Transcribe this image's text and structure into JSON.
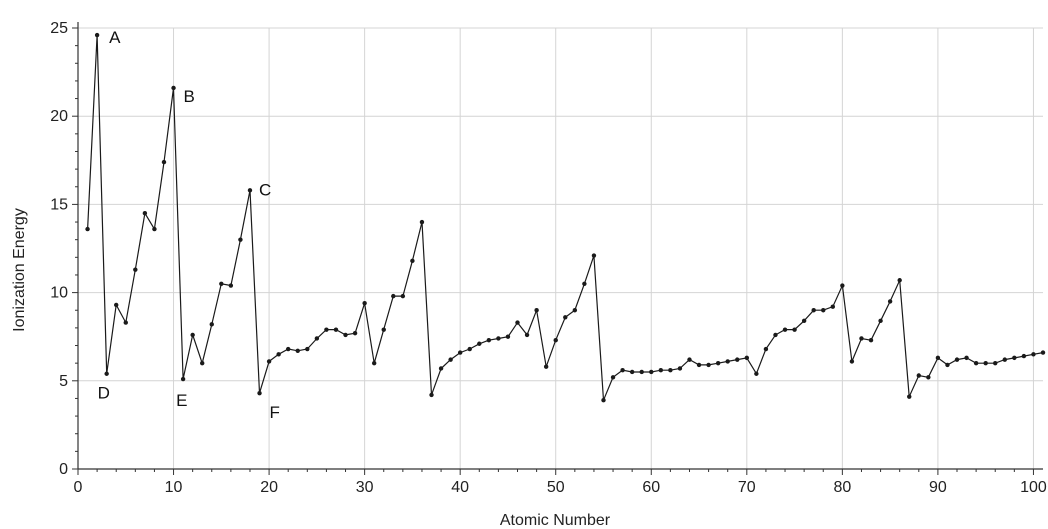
{
  "chart_data": {
    "type": "line",
    "title": "",
    "xlabel": "Atomic Number",
    "ylabel": "Ionization Energy",
    "xlim": [
      0,
      101
    ],
    "ylim": [
      0,
      25
    ],
    "xticks": [
      0,
      10,
      20,
      30,
      40,
      50,
      60,
      70,
      80,
      90,
      100
    ],
    "yticks": [
      0,
      5,
      10,
      15,
      20,
      25
    ],
    "grid": true,
    "legend": "none",
    "line_color": "#1a1a1a",
    "series": [
      {
        "x": [
          1,
          2,
          3,
          4,
          5,
          6,
          7,
          8,
          9,
          10,
          11,
          12,
          13,
          14,
          15,
          16,
          17,
          18,
          19,
          20,
          21,
          22,
          23,
          24,
          25,
          26,
          27,
          28,
          29,
          30,
          31,
          32,
          33,
          34,
          35,
          36,
          37,
          38,
          39,
          40,
          41,
          42,
          43,
          44,
          45,
          46,
          47,
          48,
          49,
          50,
          51,
          52,
          53,
          54,
          55,
          56,
          57,
          58,
          59,
          60,
          61,
          62,
          63,
          64,
          65,
          66,
          67,
          68,
          69,
          70,
          71,
          72,
          73,
          74,
          75,
          76,
          77,
          78,
          79,
          80,
          81,
          82,
          83,
          84,
          85,
          86,
          87,
          88,
          89,
          90,
          91,
          92,
          93,
          94,
          95,
          96,
          97,
          98,
          99,
          100,
          101
        ],
        "values": [
          13.6,
          24.6,
          5.4,
          9.3,
          8.3,
          11.3,
          14.5,
          13.6,
          17.4,
          21.6,
          5.1,
          7.6,
          6.0,
          8.2,
          10.5,
          10.4,
          13.0,
          15.8,
          4.3,
          6.1,
          6.5,
          6.8,
          6.7,
          6.8,
          7.4,
          7.9,
          7.9,
          7.6,
          7.7,
          9.4,
          6.0,
          7.9,
          9.8,
          9.8,
          11.8,
          14.0,
          4.2,
          5.7,
          6.2,
          6.6,
          6.8,
          7.1,
          7.3,
          7.4,
          7.5,
          8.3,
          7.6,
          9.0,
          5.8,
          7.3,
          8.6,
          9.0,
          10.5,
          12.1,
          3.9,
          5.2,
          5.6,
          5.5,
          5.5,
          5.5,
          5.6,
          5.6,
          5.7,
          6.2,
          5.9,
          5.9,
          6.0,
          6.1,
          6.2,
          6.3,
          5.4,
          6.8,
          7.6,
          7.9,
          7.9,
          8.4,
          9.0,
          9.0,
          9.2,
          10.4,
          6.1,
          7.4,
          7.3,
          8.4,
          9.5,
          10.7,
          4.1,
          5.3,
          5.2,
          6.3,
          5.9,
          6.2,
          6.3,
          6.0,
          6.0,
          6.0,
          6.2,
          6.3,
          6.4,
          6.5,
          6.6
        ]
      }
    ],
    "annotations": [
      {
        "text": "A",
        "x": 2,
        "y": 24.6
      },
      {
        "text": "B",
        "x": 10,
        "y": 21.6
      },
      {
        "text": "C",
        "x": 18,
        "y": 15.8
      },
      {
        "text": "D",
        "x": 3,
        "y": 5.4
      },
      {
        "text": "E",
        "x": 11,
        "y": 5.1
      },
      {
        "text": "F",
        "x": 19,
        "y": 4.3
      }
    ]
  }
}
